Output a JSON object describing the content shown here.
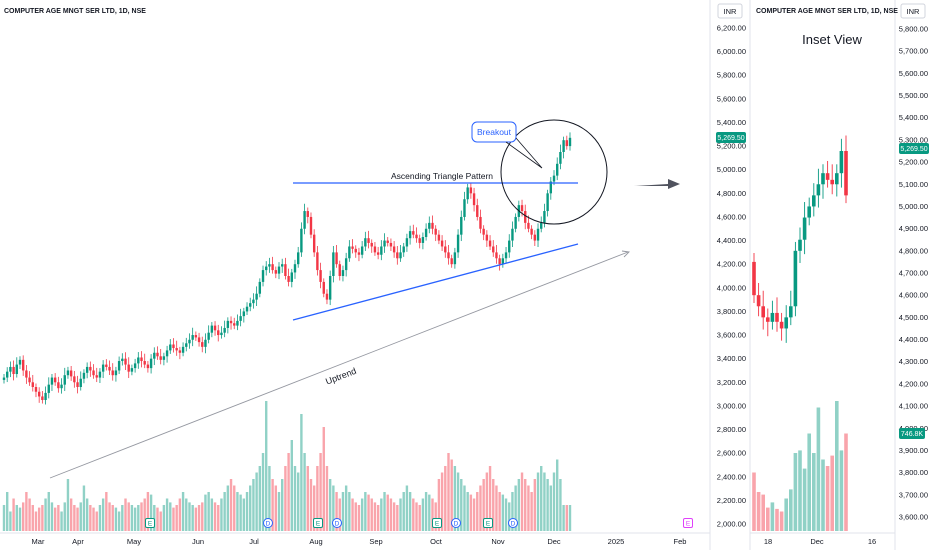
{
  "main_chart": {
    "title": "COMPUTER AGE MNGT SER LTD, 1D, NSE",
    "currency": "INR",
    "price_ticks": [
      "6,200.00",
      "6,000.00",
      "5,800.00",
      "5,600.00",
      "5,400.00",
      "5,200.00",
      "5,000.00",
      "4,800.00",
      "4,600.00",
      "4,400.00",
      "4,200.00",
      "4,000.00",
      "3,800.00",
      "3,600.00",
      "3,400.00",
      "3,200.00",
      "3,000.00",
      "2,800.00",
      "2,600.00",
      "2,400.00",
      "2,200.00",
      "2,000.00"
    ],
    "last_price": "5,269.50",
    "time_ticks": [
      "Mar",
      "Apr",
      "May",
      "Jun",
      "Jul",
      "Aug",
      "Sep",
      "Oct",
      "Nov",
      "Dec",
      "2025",
      "Feb"
    ],
    "annotations": {
      "pattern_label": "Ascending Triangle Pattern",
      "breakout_label": "Breakout",
      "uptrend_label": "Uptrend"
    },
    "event_markers": [
      {
        "label": "E",
        "kind": "earnings"
      },
      {
        "label": "D",
        "kind": "dividend"
      },
      {
        "label": "E",
        "kind": "earnings"
      },
      {
        "label": "D",
        "kind": "dividend"
      },
      {
        "label": "E",
        "kind": "earnings"
      },
      {
        "label": "D",
        "kind": "dividend"
      },
      {
        "label": "E",
        "kind": "earnings"
      },
      {
        "label": "D",
        "kind": "dividend"
      },
      {
        "label": "E",
        "kind": "earnings-upcoming"
      }
    ]
  },
  "inset_chart": {
    "title": "COMPUTER AGE MNGT SER LTD, 1D, NSE",
    "currency": "INR",
    "heading": "Inset View",
    "price_ticks": [
      "5,800.00",
      "5,700.00",
      "5,600.00",
      "5,500.00",
      "5,400.00",
      "5,300.00",
      "5,200.00",
      "5,100.00",
      "5,000.00",
      "4,900.00",
      "4,800.00",
      "4,700.00",
      "4,600.00",
      "4,500.00",
      "4,400.00",
      "4,300.00",
      "4,200.00",
      "4,100.00",
      "4,000.00",
      "3,900.00",
      "3,800.00",
      "3,700.00",
      "3,600.00"
    ],
    "last_price": "5,269.50",
    "volume_label": "746.8K",
    "time_ticks": [
      "18",
      "Dec",
      "16"
    ]
  },
  "chart_data": [
    {
      "type": "candlestick",
      "title": "COMPUTER AGE MNGT SER LTD, 1D, NSE",
      "ylabel": "INR",
      "ylim": [
        1950,
        6300
      ],
      "candles_close": [
        3240,
        3290,
        3330,
        3270,
        3350,
        3390,
        3300,
        3240,
        3200,
        3160,
        3120,
        3080,
        3050,
        3110,
        3180,
        3240,
        3200,
        3150,
        3180,
        3260,
        3300,
        3250,
        3200,
        3160,
        3230,
        3280,
        3330,
        3300,
        3260,
        3240,
        3290,
        3350,
        3330,
        3300,
        3260,
        3300,
        3380,
        3400,
        3350,
        3290,
        3320,
        3360,
        3410,
        3380,
        3350,
        3320,
        3400,
        3450,
        3420,
        3390,
        3420,
        3470,
        3520,
        3490,
        3470,
        3450,
        3500,
        3530,
        3560,
        3600,
        3580,
        3540,
        3500,
        3560,
        3620,
        3680,
        3640,
        3600,
        3620,
        3660,
        3720,
        3700,
        3680,
        3720,
        3760,
        3800,
        3840,
        3870,
        3900,
        3950,
        4050,
        4150,
        4180,
        4200,
        4150,
        4120,
        4180,
        4200,
        4100,
        4050,
        4130,
        4200,
        4300,
        4500,
        4650,
        4600,
        4450,
        4300,
        4150,
        4050,
        3950,
        3900,
        4100,
        4300,
        4200,
        4100,
        4150,
        4250,
        4350,
        4330,
        4300,
        4280,
        4350,
        4420,
        4380,
        4350,
        4300,
        4280,
        4350,
        4400,
        4380,
        4350,
        4300,
        4250,
        4300,
        4350,
        4420,
        4480,
        4450,
        4420,
        4380,
        4430,
        4500,
        4550,
        4500,
        4450,
        4400,
        4350,
        4300,
        4250,
        4200,
        4300,
        4450,
        4600,
        4750,
        4850,
        4800,
        4700,
        4600,
        4500,
        4450,
        4400,
        4350,
        4300,
        4250,
        4200,
        4250,
        4300,
        4400,
        4500,
        4600,
        4700,
        4650,
        4550,
        4500,
        4450,
        4400,
        4500,
        4550,
        4650,
        4800,
        4900,
        4950,
        5050,
        5150,
        5250,
        5200,
        5270
      ],
      "volume_unit": "relative",
      "volumes": [
        0.2,
        0.3,
        0.15,
        0.25,
        0.2,
        0.18,
        0.22,
        0.3,
        0.25,
        0.2,
        0.15,
        0.18,
        0.2,
        0.25,
        0.3,
        0.22,
        0.18,
        0.2,
        0.15,
        0.22,
        0.4,
        0.25,
        0.2,
        0.18,
        0.22,
        0.35,
        0.25,
        0.2,
        0.18,
        0.15,
        0.2,
        0.25,
        0.3,
        0.22,
        0.2,
        0.18,
        0.15,
        0.2,
        0.25,
        0.22,
        0.2,
        0.18,
        0.2,
        0.22,
        0.25,
        0.3,
        0.28,
        0.2,
        0.18,
        0.15,
        0.2,
        0.25,
        0.22,
        0.18,
        0.2,
        0.25,
        0.3,
        0.25,
        0.22,
        0.2,
        0.18,
        0.2,
        0.22,
        0.28,
        0.3,
        0.25,
        0.22,
        0.2,
        0.25,
        0.3,
        0.35,
        0.4,
        0.35,
        0.3,
        0.28,
        0.25,
        0.3,
        0.35,
        0.4,
        0.45,
        0.5,
        0.6,
        1.0,
        0.5,
        0.4,
        0.35,
        0.3,
        0.4,
        0.5,
        0.6,
        0.7,
        0.5,
        0.45,
        0.9,
        0.6,
        0.5,
        0.4,
        0.35,
        0.5,
        0.6,
        0.8,
        0.5,
        0.4,
        0.35,
        0.3,
        0.25,
        0.3,
        0.35,
        0.3,
        0.25,
        0.22,
        0.2,
        0.25,
        0.3,
        0.28,
        0.25,
        0.22,
        0.2,
        0.25,
        0.3,
        0.28,
        0.25,
        0.22,
        0.2,
        0.25,
        0.3,
        0.35,
        0.3,
        0.25,
        0.22,
        0.2,
        0.25,
        0.3,
        0.28,
        0.25,
        0.22,
        0.4,
        0.45,
        0.5,
        0.6,
        0.55,
        0.5,
        0.45,
        0.4,
        0.35,
        0.3,
        0.28,
        0.25,
        0.3,
        0.35,
        0.4,
        0.45,
        0.5,
        0.4,
        0.35,
        0.3,
        0.28,
        0.25,
        0.22,
        0.3,
        0.35,
        0.4,
        0.45,
        0.4,
        0.35,
        0.3,
        0.4,
        0.45,
        0.5,
        0.45,
        0.4,
        0.35,
        0.45,
        0.55,
        0.4
      ],
      "event_markers": [
        "E",
        "D",
        "E",
        "D",
        "E",
        "D",
        "E",
        "D",
        "E"
      ]
    },
    {
      "type": "candlestick",
      "title": "COMPUTER AGE MNGT SER LTD, 1D, NSE",
      "subtitle": "Inset View",
      "ylabel": "INR",
      "ylim": [
        3550,
        5870
      ],
      "candles_close": [
        4600,
        4550,
        4500,
        4480,
        4520,
        4480,
        4450,
        4500,
        4550,
        4800,
        4850,
        4950,
        5000,
        5050,
        5100,
        5150,
        5120,
        5100,
        5150,
        5250,
        5050
      ],
      "volume_label": "746.8K"
    }
  ]
}
